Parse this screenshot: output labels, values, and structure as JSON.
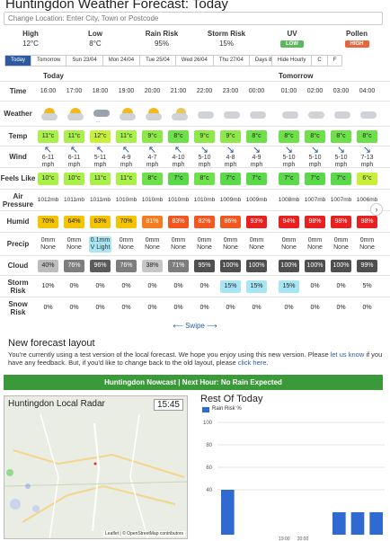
{
  "page": {
    "title": "Huntingdon Weather Forecast: Today",
    "location_placeholder": "Change Location: Enter City, Town or Postcode"
  },
  "summary": [
    {
      "label": "High",
      "value": "12°C"
    },
    {
      "label": "Low",
      "value": "8°C"
    },
    {
      "label": "Rain Risk",
      "value": "95%"
    },
    {
      "label": "Storm Risk",
      "value": "15%"
    },
    {
      "label": "UV",
      "value": "LOW",
      "color": "#5cb85c"
    },
    {
      "label": "Pollen",
      "value": "HIGH",
      "color": "#e8643a"
    }
  ],
  "tabs": [
    "Today",
    "Tomorrow",
    "Sun 23/04",
    "Mon 24/04",
    "Tue 25/04",
    "Wed 26/04",
    "Thu 27/04",
    "Days 8-14"
  ],
  "options": [
    "Hide Hourly",
    "C",
    "F"
  ],
  "days": {
    "today": "Today",
    "tomorrow": "Tomorrow"
  },
  "row_labels": {
    "time": "Time",
    "weather": "Weather",
    "temp": "Temp",
    "wind": "Wind",
    "feels": "Feels Like",
    "pressure": "Air Pressure",
    "humid": "Humid",
    "precip": "Precip",
    "cloud": "Cloud",
    "storm": "Storm Risk",
    "snow": "Snow Risk"
  },
  "hours": [
    {
      "time": "16:00",
      "icon": "sun-cloud",
      "temp": "11°c",
      "wind_dir": "↖",
      "wind": "6-11",
      "unit": "mph",
      "feels": "10°c",
      "pressure": "1012mb",
      "humid": "70%",
      "precip": "0mm",
      "precip2": "None",
      "cloud": "40%",
      "storm": "10%",
      "snow": "0%"
    },
    {
      "time": "17:00",
      "icon": "sun-cloud",
      "temp": "11°c",
      "wind_dir": "↖",
      "wind": "6-11",
      "unit": "mph",
      "feels": "10°c",
      "pressure": "1011mb",
      "humid": "64%",
      "precip": "0mm",
      "precip2": "None",
      "cloud": "76%",
      "storm": "0%",
      "snow": "0%"
    },
    {
      "time": "18:00",
      "icon": "rain-cloud",
      "temp": "12°c",
      "wind_dir": "↖",
      "wind": "5-11",
      "unit": "mph",
      "feels": "11°c",
      "pressure": "1011mb",
      "humid": "63%",
      "precip": "0.1mm",
      "precip2": "V Light",
      "cloud": "96%",
      "storm": "0%",
      "snow": "0%"
    },
    {
      "time": "19:00",
      "icon": "sun-cloud",
      "temp": "11°c",
      "wind_dir": "↖",
      "wind": "4-9",
      "unit": "mph",
      "feels": "11°c",
      "pressure": "1010mb",
      "humid": "70%",
      "precip": "0mm",
      "precip2": "None",
      "cloud": "76%",
      "storm": "0%",
      "snow": "0%"
    },
    {
      "time": "20:00",
      "icon": "sun-cloud",
      "temp": "9°c",
      "wind_dir": "↖",
      "wind": "4-7",
      "unit": "mph",
      "feels": "8°c",
      "pressure": "1010mb",
      "humid": "81%",
      "precip": "0mm",
      "precip2": "None",
      "cloud": "38%",
      "storm": "0%",
      "snow": "0%"
    },
    {
      "time": "21:00",
      "icon": "moon-cloud",
      "temp": "8°c",
      "wind_dir": "↖",
      "wind": "4-10",
      "unit": "mph",
      "feels": "7°c",
      "pressure": "1010mb",
      "humid": "83%",
      "precip": "0mm",
      "precip2": "None",
      "cloud": "71%",
      "storm": "0%",
      "snow": "0%"
    },
    {
      "time": "22:00",
      "icon": "cloud",
      "temp": "9°c",
      "wind_dir": "↘",
      "wind": "5-10",
      "unit": "mph",
      "feels": "8°c",
      "pressure": "1010mb",
      "humid": "82%",
      "precip": "0mm",
      "precip2": "None",
      "cloud": "95%",
      "storm": "0%",
      "snow": "0%"
    },
    {
      "time": "23:00",
      "icon": "cloud",
      "temp": "9°c",
      "wind_dir": "↘",
      "wind": "4-8",
      "unit": "mph",
      "feels": "7°c",
      "pressure": "1009mb",
      "humid": "86%",
      "precip": "0mm",
      "precip2": "None",
      "cloud": "100%",
      "storm": "15%",
      "snow": "0%"
    },
    {
      "time": "00:00",
      "icon": "cloud",
      "temp": "8°c",
      "wind_dir": "↘",
      "wind": "4-9",
      "unit": "mph",
      "feels": "7°c",
      "pressure": "1009mb",
      "humid": "93%",
      "precip": "0mm",
      "precip2": "None",
      "cloud": "100%",
      "storm": "15%",
      "snow": "0%"
    },
    {
      "time": "01:00",
      "icon": "cloud",
      "temp": "8°c",
      "wind_dir": "↘",
      "wind": "5-10",
      "unit": "mph",
      "feels": "7°c",
      "pressure": "1008mb",
      "humid": "94%",
      "precip": "0mm",
      "precip2": "None",
      "cloud": "100%",
      "storm": "15%",
      "snow": "0%"
    },
    {
      "time": "02:00",
      "icon": "cloud",
      "temp": "8°c",
      "wind_dir": "↘",
      "wind": "5-10",
      "unit": "mph",
      "feels": "7°c",
      "pressure": "1007mb",
      "humid": "98%",
      "precip": "0mm",
      "precip2": "None",
      "cloud": "100%",
      "storm": "0%",
      "snow": "0%"
    },
    {
      "time": "03:00",
      "icon": "cloud",
      "temp": "8°c",
      "wind_dir": "↘",
      "wind": "5-10",
      "unit": "mph",
      "feels": "7°c",
      "pressure": "1007mb",
      "humid": "98%",
      "precip": "0mm",
      "precip2": "None",
      "cloud": "100%",
      "storm": "0%",
      "snow": "0%"
    },
    {
      "time": "04:00",
      "icon": "cloud",
      "temp": "8°c",
      "wind_dir": "↘",
      "wind": "7-13",
      "unit": "mph",
      "feels": "6°c",
      "pressure": "1006mb",
      "humid": "98%",
      "precip": "0mm",
      "precip2": "None",
      "cloud": "99%",
      "storm": "5%",
      "snow": "0%"
    }
  ],
  "colors": {
    "temp": [
      "#aaf04a",
      "#aaf04a",
      "#c8f03a",
      "#aaf04a",
      "#8ee84a",
      "#6ee04a",
      "#8ee84a",
      "#8ee84a",
      "#6ee04a",
      "#6ee04a",
      "#6ee04a",
      "#6ee04a",
      "#6ee04a"
    ],
    "feels": [
      "#aaf04a",
      "#aaf04a",
      "#aaf04a",
      "#aaf04a",
      "#6ee04a",
      "#5cd94a",
      "#6ee04a",
      "#5cd94a",
      "#5cd94a",
      "#5cd94a",
      "#5cd94a",
      "#5cd94a",
      "#c8f03a"
    ],
    "humid": [
      "#f5c400",
      "#f5c400",
      "#f5c400",
      "#f5c400",
      "#f57d1f",
      "#f2571f",
      "#f2571f",
      "#f2571f",
      "#e8201f",
      "#e8201f",
      "#e8201f",
      "#e8201f",
      "#e8201f"
    ],
    "cloud": [
      "#bdbdbd",
      "#7d7d7d",
      "#5b5b5b",
      "#7d7d7d",
      "#c7c7c7",
      "#7d7d7d",
      "#4f4f4f",
      "#4f4f4f",
      "#4f4f4f",
      "#4f4f4f",
      "#4f4f4f",
      "#4f4f4f",
      "#4f4f4f"
    ],
    "precip_light": "#a8e6f5",
    "storm_light": "#a8e6f5"
  },
  "swipe": "Swipe",
  "new_layout": {
    "title": "New forecast layout",
    "text1": "You're currently using a test version of the local forecast. We hope you enjoy using this new version. Please ",
    "link1": "let us know",
    "text2": " if you have any feedback. But, if you'd like to change back to the old layout, please ",
    "link2": "click here",
    "text3": "."
  },
  "nowcast": "Huntingdon Nowcast | Next Hour: No Rain Expected",
  "radar": {
    "title": "Huntingdon Local Radar",
    "time": "15:45",
    "attribution": "Leaflet | © OpenStreetMap contributors"
  },
  "rest": {
    "title": "Rest Of Today",
    "legend": "Rain Risk %"
  },
  "chart_data": {
    "type": "bar",
    "title": "Rest Of Today",
    "categories": [
      "16:00",
      "17:00",
      "18:00",
      "19:00",
      "20:00",
      "21:00",
      "22:00",
      "23:00",
      "00:00"
    ],
    "series": [
      {
        "name": "Rain Risk %",
        "values": [
          40,
          0,
          0,
          0,
          0,
          0,
          20,
          20,
          20
        ]
      }
    ],
    "y_ticks": [
      100,
      80,
      60,
      40
    ],
    "x_ticks_visible": [
      "19:00",
      "20:00"
    ],
    "ylim": [
      0,
      100
    ],
    "color": "#2e6ad1"
  }
}
